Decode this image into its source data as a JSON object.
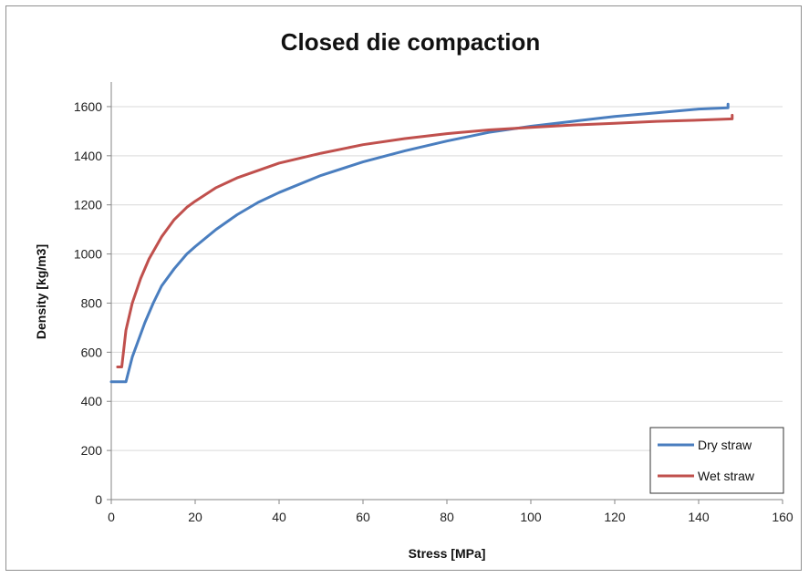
{
  "chart_data": {
    "type": "line",
    "title": "Closed die compaction",
    "xlabel": "Stress [MPa]",
    "ylabel": "Density [kg/m3]",
    "xlim": [
      0,
      160
    ],
    "ylim": [
      0,
      1700
    ],
    "xticks": [
      0,
      20,
      40,
      60,
      80,
      100,
      120,
      140,
      160
    ],
    "yticks": [
      0,
      200,
      400,
      600,
      800,
      1000,
      1200,
      1400,
      1600
    ],
    "grid": "horizontal",
    "legend_position": "bottom-right",
    "series": [
      {
        "name": "Dry straw",
        "color": "#4a7ebf",
        "x": [
          0,
          3.5,
          5,
          8,
          10,
          12,
          15,
          18,
          20,
          25,
          30,
          35,
          40,
          50,
          60,
          70,
          80,
          90,
          100,
          110,
          120,
          130,
          140,
          147,
          147
        ],
        "y": [
          480,
          480,
          580,
          720,
          800,
          870,
          940,
          1000,
          1030,
          1100,
          1160,
          1210,
          1250,
          1320,
          1375,
          1420,
          1460,
          1495,
          1520,
          1540,
          1560,
          1575,
          1590,
          1595,
          1610
        ]
      },
      {
        "name": "Wet straw",
        "color": "#c0504d",
        "x": [
          1.5,
          2.5,
          3.5,
          5,
          7,
          9,
          12,
          15,
          18,
          20,
          25,
          30,
          40,
          50,
          60,
          70,
          80,
          90,
          100,
          110,
          120,
          130,
          140,
          148,
          148
        ],
        "y": [
          540,
          540,
          690,
          800,
          900,
          980,
          1070,
          1140,
          1190,
          1215,
          1270,
          1310,
          1370,
          1410,
          1445,
          1470,
          1490,
          1505,
          1515,
          1525,
          1532,
          1540,
          1545,
          1550,
          1565
        ]
      }
    ]
  }
}
